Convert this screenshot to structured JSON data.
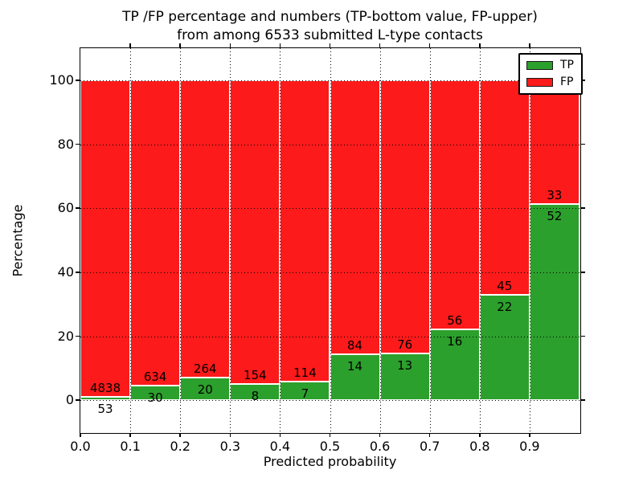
{
  "chart_data": {
    "type": "bar",
    "variant": "stacked-percentage",
    "title_lines": [
      "TP /FP percentage and numbers (TP-bottom value, FP-upper)",
      "from among 6533 submitted L-type contacts"
    ],
    "xlabel": "Predicted probability",
    "ylabel": "Percentage",
    "total_contacts": 6533,
    "x_tick_labels": [
      "0.0",
      "0.1",
      "0.2",
      "0.3",
      "0.4",
      "0.5",
      "0.6",
      "0.7",
      "0.8",
      "0.9"
    ],
    "y_ticks": [
      0,
      20,
      40,
      60,
      80,
      100
    ],
    "ylim": [
      -10,
      110
    ],
    "xlim": [
      0.0,
      1.0
    ],
    "bin_width": 0.1,
    "categories": [
      "0.0-0.1",
      "0.1-0.2",
      "0.2-0.3",
      "0.3-0.4",
      "0.4-0.5",
      "0.5-0.6",
      "0.6-0.7",
      "0.7-0.8",
      "0.8-0.9",
      "0.9-1.0"
    ],
    "series": [
      {
        "name": "TP",
        "color": "#2ca02c",
        "position": "bottom",
        "values": [
          53,
          30,
          20,
          8,
          7,
          14,
          13,
          16,
          22,
          52
        ]
      },
      {
        "name": "FP",
        "color": "#fd1a1a",
        "position": "top",
        "values": [
          4838,
          634,
          264,
          154,
          114,
          84,
          76,
          56,
          45,
          33
        ]
      }
    ],
    "tp_percent_heights": [
      1.08,
      4.52,
      7.04,
      4.94,
      5.79,
      14.29,
      14.61,
      22.22,
      32.84,
      61.18
    ],
    "grid": {
      "style": "dotted",
      "color": "#000000",
      "horizontal": true,
      "vertical": true
    },
    "legend": {
      "position": "upper right",
      "entries": [
        {
          "label": "TP",
          "color": "#2ca02c"
        },
        {
          "label": "FP",
          "color": "#fd1a1a"
        }
      ]
    },
    "bar_edge_color": "#ffffff",
    "axis_color": "#000000"
  }
}
